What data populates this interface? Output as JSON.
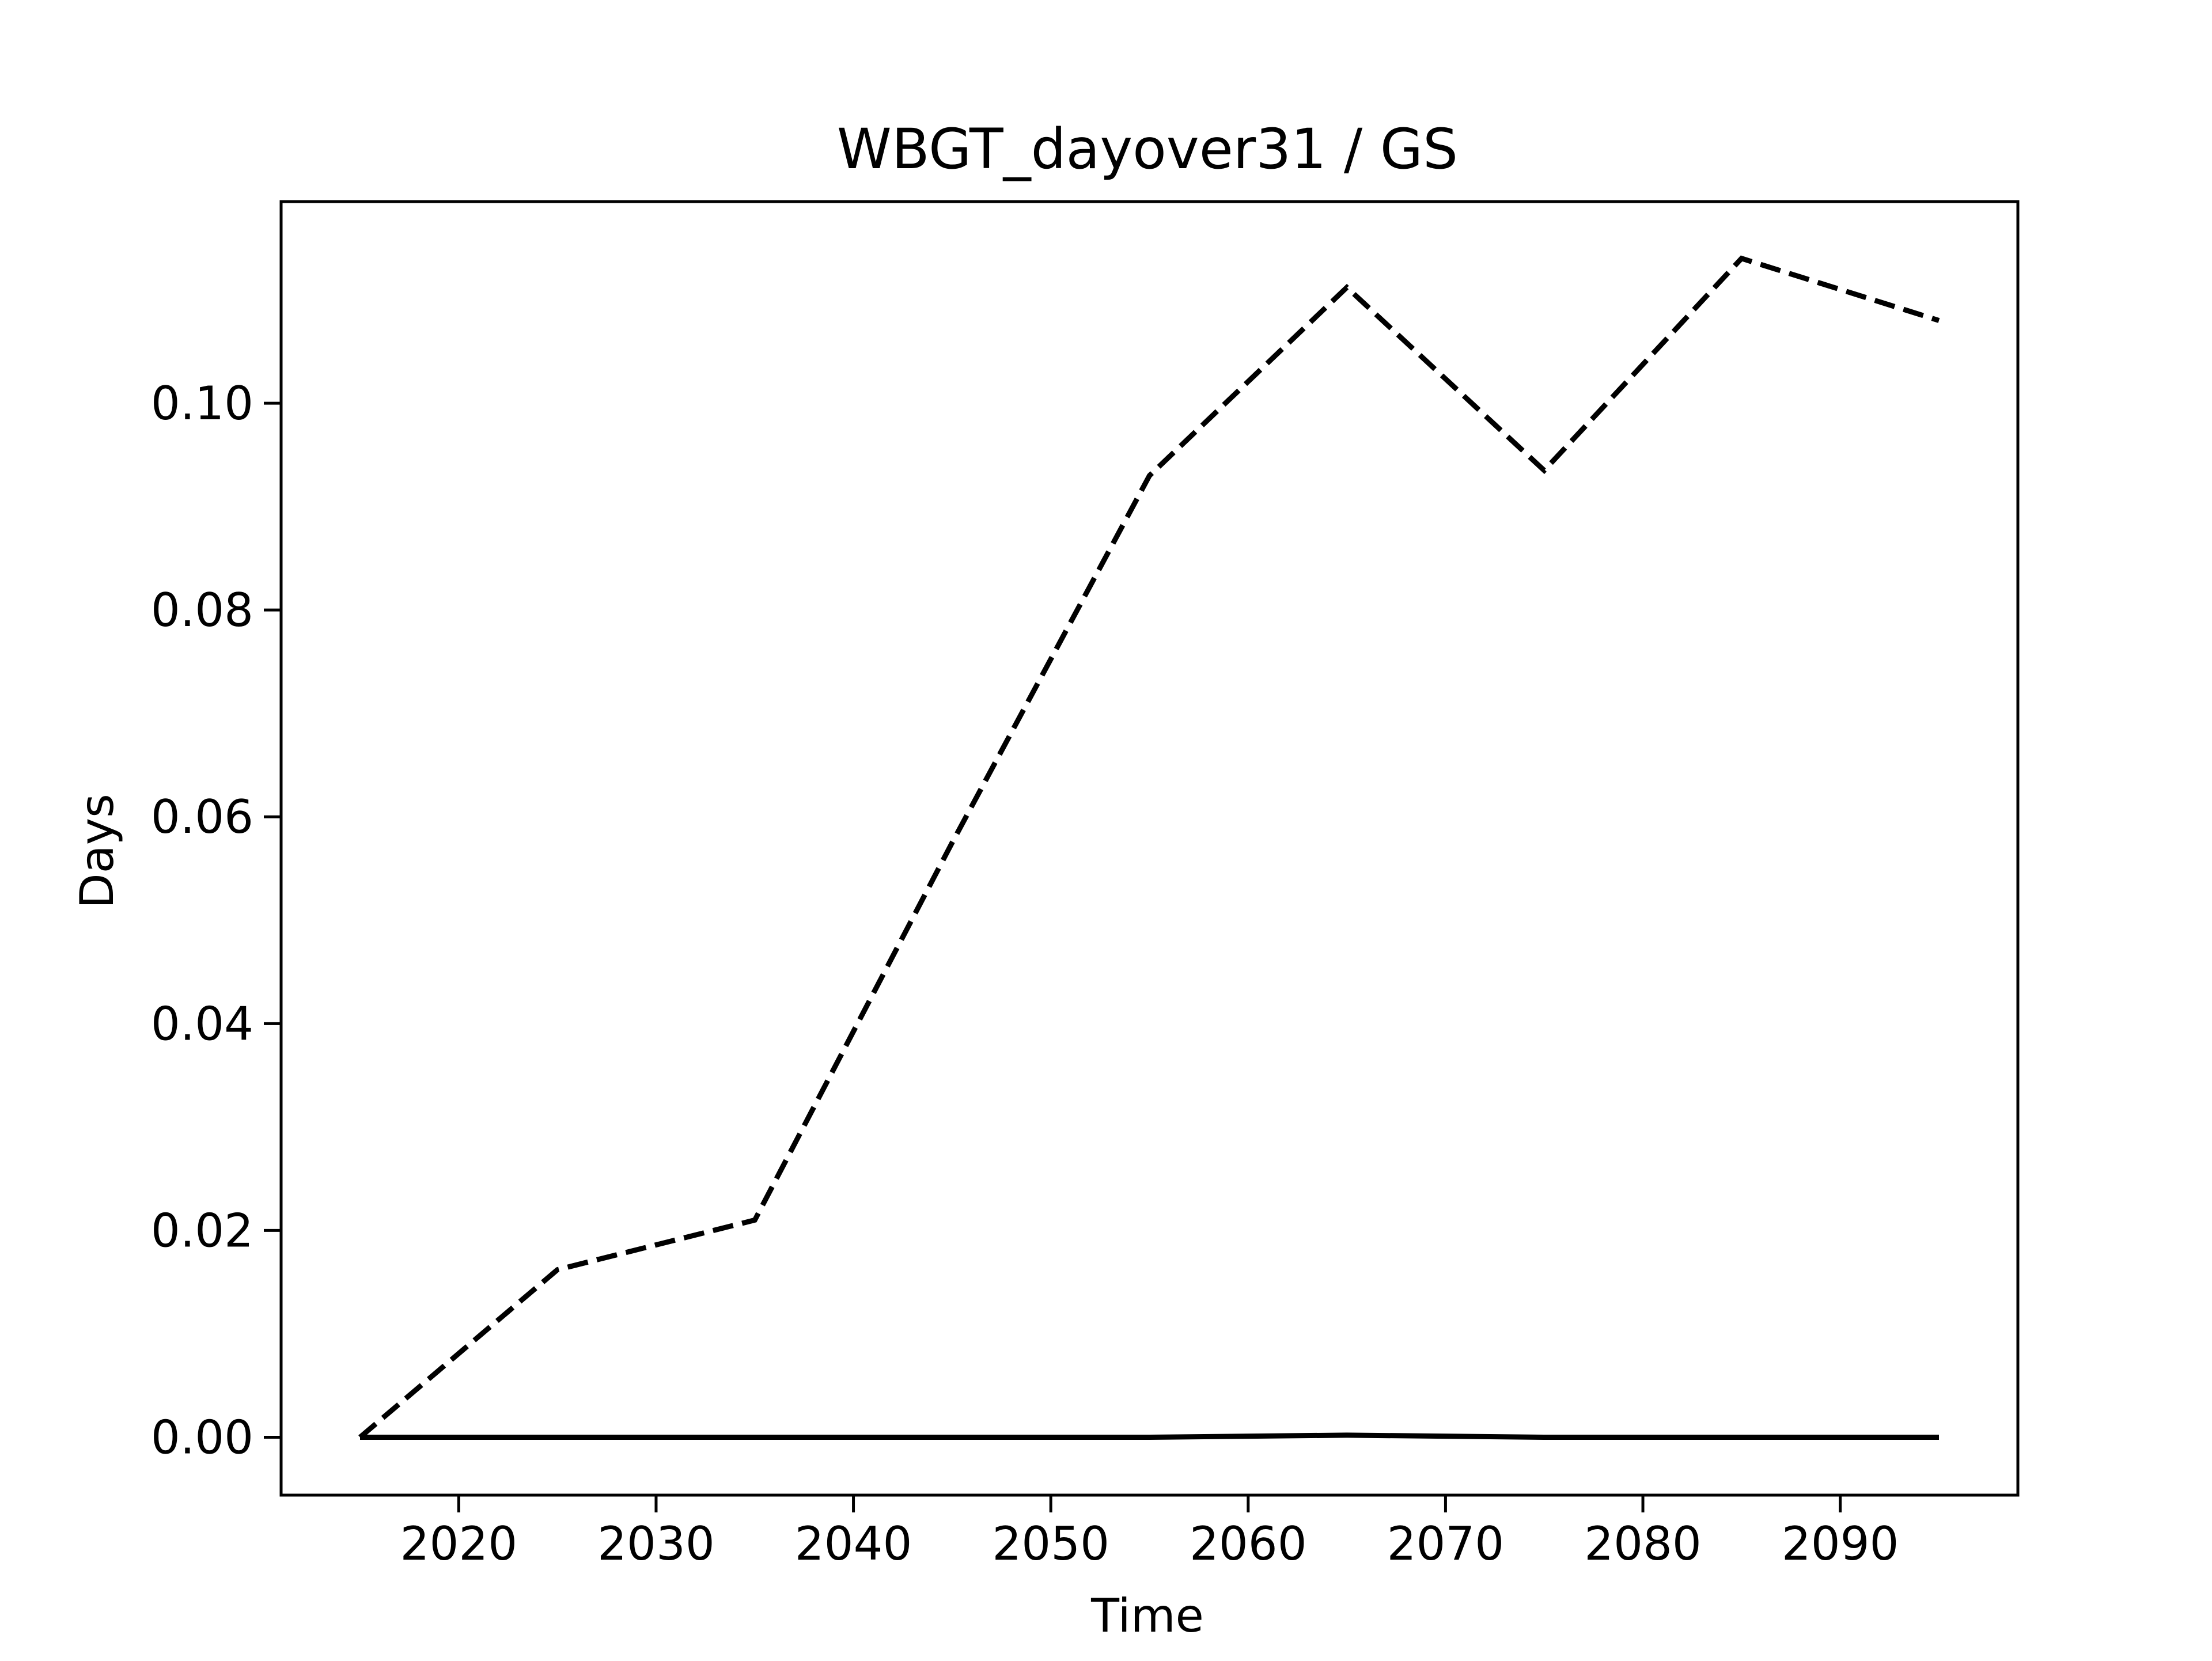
{
  "chart_data": {
    "type": "line",
    "title": "WBGT_dayover31 / GS",
    "xlabel": "Time",
    "ylabel": "Days",
    "xlim": [
      2011,
      2099
    ],
    "ylim": [
      -0.0056,
      0.1195
    ],
    "x_ticks": [
      2020,
      2030,
      2040,
      2050,
      2060,
      2070,
      2080,
      2090
    ],
    "y_ticks": [
      0.0,
      0.02,
      0.04,
      0.06,
      0.08,
      0.1
    ],
    "y_tick_labels": [
      "0.00",
      "0.02",
      "0.04",
      "0.06",
      "0.08",
      "0.10"
    ],
    "grid": false,
    "legend": "none",
    "x": [
      2015,
      2025,
      2035,
      2045,
      2055,
      2065,
      2075,
      2085,
      2095
    ],
    "series": [
      {
        "style": "dashed",
        "color": "#000000",
        "values": [
          0.0,
          0.0162,
          0.021,
          0.0575,
          0.093,
          0.1112,
          0.0935,
          0.114,
          0.108
        ]
      },
      {
        "style": "solid",
        "color": "#000000",
        "values": [
          0.0,
          0.0,
          0.0,
          0.0,
          0.0,
          0.0002,
          0.0,
          0.0,
          0.0
        ]
      }
    ]
  }
}
